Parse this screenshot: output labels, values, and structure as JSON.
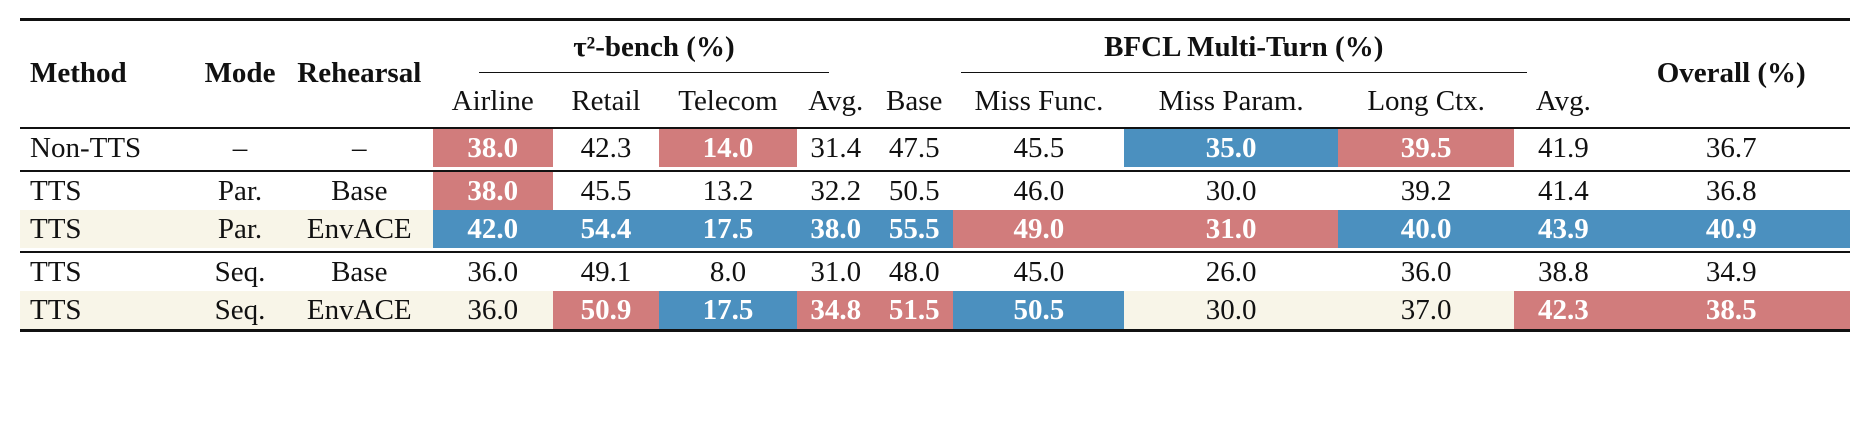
{
  "headers": {
    "method": "Method",
    "mode": "Mode",
    "rehearsal": "Rehearsal",
    "tau_group": "τ²-bench (%)",
    "bfcl_group": "BFCL Multi-Turn (%)",
    "overall": "Overall (%)",
    "tau_cols": [
      "Airline",
      "Retail",
      "Telecom",
      "Avg."
    ],
    "bfcl_cols": [
      "Base",
      "Miss Func.",
      "Miss Param.",
      "Long Ctx.",
      "Avg."
    ]
  },
  "rows": [
    {
      "method": "Non-TTS",
      "mode": "–",
      "rehearsal": "–",
      "values": [
        "38.0",
        "42.3",
        "14.0",
        "31.4",
        "47.5",
        "45.5",
        "35.0",
        "39.5",
        "41.9",
        "36.7"
      ]
    },
    {
      "method": "TTS",
      "mode": "Par.",
      "rehearsal": "Base",
      "values": [
        "38.0",
        "45.5",
        "13.2",
        "32.2",
        "50.5",
        "46.0",
        "30.0",
        "39.2",
        "41.4",
        "36.8"
      ]
    },
    {
      "method": "TTS",
      "mode": "Par.",
      "rehearsal": "EnvACE",
      "values": [
        "42.0",
        "54.4",
        "17.5",
        "38.0",
        "55.5",
        "49.0",
        "31.0",
        "40.0",
        "43.9",
        "40.9"
      ]
    },
    {
      "method": "TTS",
      "mode": "Seq.",
      "rehearsal": "Base",
      "values": [
        "36.0",
        "49.1",
        "8.0",
        "31.0",
        "48.0",
        "45.0",
        "26.0",
        "36.0",
        "38.8",
        "34.9"
      ]
    },
    {
      "method": "TTS",
      "mode": "Seq.",
      "rehearsal": "EnvACE",
      "values": [
        "36.0",
        "50.9",
        "17.5",
        "34.8",
        "51.5",
        "50.5",
        "30.0",
        "37.0",
        "42.3",
        "38.5"
      ]
    }
  ],
  "colors": {
    "red": "#d17c7c",
    "blue": "#4b90bf",
    "cream": "#f8f5e8"
  }
}
